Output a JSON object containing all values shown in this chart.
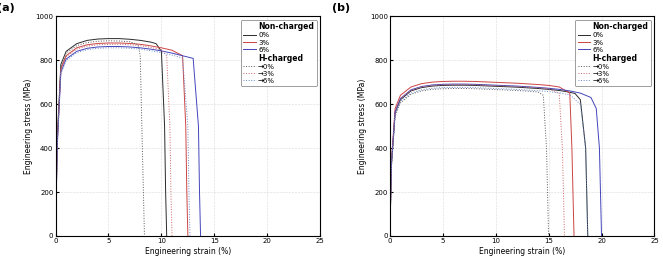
{
  "title_a": "(a)",
  "title_b": "(b)",
  "xlabel": "Engineering strain (%)",
  "ylabel": "Engineering stress (MPa)",
  "xlim": [
    0,
    25
  ],
  "ylim": [
    0,
    1000
  ],
  "yticks": [
    0,
    200,
    400,
    600,
    800,
    1000
  ],
  "xticks": [
    0,
    5,
    10,
    15,
    20,
    25
  ],
  "legend_noncharged": "Non-charged",
  "legend_hcharged": "H-charged",
  "legend_labels_nc": [
    "0%",
    "3%",
    "6%"
  ],
  "legend_labels_hc": [
    "→0%",
    "→3%",
    "→6%"
  ],
  "colors_nc": [
    "#2a2a2a",
    "#cc4444",
    "#4444bb"
  ],
  "colors_hc": [
    "#555555",
    "#cc6666",
    "#6688cc"
  ],
  "figsize": [
    6.63,
    2.6
  ],
  "dpi": 100,
  "subplot_background": "#ffffff",
  "grid_color": "#bbbbbb",
  "fontsize_label": 5.5,
  "fontsize_tick": 5.0,
  "fontsize_legend_title": 5.5,
  "fontsize_legend": 5.0,
  "fontsize_panel": 8,
  "linewidth_main": 0.7,
  "a_nc_0_strain": [
    0,
    0.15,
    0.5,
    1.0,
    2.0,
    3.0,
    4.0,
    5.0,
    6.0,
    7.0,
    8.0,
    9.0,
    9.5,
    10.0,
    10.3,
    10.4,
    10.5
  ],
  "a_nc_0_stress": [
    0,
    430,
    780,
    840,
    875,
    890,
    896,
    898,
    898,
    895,
    890,
    882,
    875,
    840,
    500,
    200,
    0
  ],
  "a_nc_3_strain": [
    0,
    0.15,
    0.5,
    1.0,
    2.0,
    3.0,
    4.0,
    5.0,
    6.0,
    7.0,
    8.0,
    9.0,
    10.0,
    11.0,
    12.0,
    12.3,
    12.4,
    12.5
  ],
  "a_nc_3_stress": [
    0,
    415,
    760,
    820,
    856,
    870,
    876,
    878,
    878,
    876,
    872,
    865,
    856,
    845,
    820,
    500,
    200,
    0
  ],
  "a_nc_6_strain": [
    0,
    0.15,
    0.5,
    1.0,
    2.0,
    3.0,
    4.0,
    5.0,
    6.0,
    7.0,
    8.0,
    9.0,
    10.0,
    11.0,
    12.0,
    13.0,
    13.5,
    13.6,
    13.7
  ],
  "a_nc_6_stress": [
    0,
    400,
    745,
    805,
    840,
    854,
    860,
    862,
    862,
    860,
    856,
    850,
    842,
    832,
    820,
    808,
    500,
    200,
    0
  ],
  "a_hc_0_strain": [
    0,
    0.15,
    0.5,
    1.0,
    2.0,
    3.0,
    4.0,
    5.0,
    6.0,
    7.0,
    7.8,
    8.0,
    8.2,
    8.3,
    8.4
  ],
  "a_hc_0_stress": [
    0,
    420,
    770,
    832,
    866,
    880,
    886,
    888,
    887,
    884,
    870,
    820,
    400,
    200,
    0
  ],
  "a_hc_3_strain": [
    0,
    0.15,
    0.5,
    1.0,
    2.0,
    3.0,
    4.0,
    5.0,
    6.0,
    7.0,
    8.0,
    9.0,
    10.0,
    10.5,
    10.8,
    10.9,
    11.0
  ],
  "a_hc_3_stress": [
    0,
    410,
    755,
    815,
    850,
    864,
    870,
    872,
    872,
    870,
    866,
    858,
    848,
    820,
    500,
    200,
    0
  ],
  "a_hc_6_strain": [
    0,
    0.15,
    0.5,
    1.0,
    2.0,
    3.0,
    4.0,
    5.0,
    6.0,
    7.0,
    8.0,
    9.0,
    10.0,
    11.0,
    12.0,
    12.5,
    12.6,
    12.7
  ],
  "a_hc_6_stress": [
    0,
    395,
    738,
    798,
    834,
    848,
    854,
    856,
    856,
    854,
    850,
    843,
    834,
    823,
    810,
    500,
    200,
    0
  ],
  "b_nc_0_strain": [
    0,
    0.15,
    0.5,
    1.0,
    2.0,
    3.0,
    4.0,
    5.0,
    6.0,
    7.0,
    8.0,
    9.0,
    10.0,
    11.0,
    12.0,
    13.0,
    14.0,
    15.0,
    16.0,
    17.0,
    17.5,
    18.0,
    18.5,
    18.6,
    18.7
  ],
  "b_nc_0_stress": [
    0,
    320,
    560,
    620,
    660,
    675,
    682,
    685,
    686,
    686,
    685,
    683,
    681,
    679,
    677,
    674,
    671,
    667,
    662,
    654,
    648,
    620,
    400,
    200,
    0
  ],
  "b_nc_3_strain": [
    0,
    0.15,
    0.5,
    1.0,
    2.0,
    3.0,
    4.0,
    5.0,
    6.0,
    7.0,
    8.0,
    9.0,
    10.0,
    11.0,
    12.0,
    13.0,
    14.0,
    15.0,
    16.0,
    17.0,
    17.2,
    17.3,
    17.4
  ],
  "b_nc_3_stress": [
    0,
    340,
    580,
    640,
    678,
    693,
    700,
    703,
    704,
    704,
    703,
    701,
    699,
    697,
    695,
    692,
    689,
    685,
    678,
    650,
    400,
    200,
    0
  ],
  "b_nc_6_strain": [
    0,
    0.15,
    0.5,
    1.0,
    2.0,
    3.0,
    4.0,
    5.0,
    6.0,
    7.0,
    8.0,
    9.0,
    10.0,
    11.0,
    12.0,
    13.0,
    14.0,
    15.0,
    16.0,
    17.0,
    18.0,
    19.0,
    19.5,
    19.8,
    19.9,
    20.0
  ],
  "b_nc_6_stress": [
    0,
    330,
    565,
    625,
    665,
    680,
    687,
    690,
    691,
    691,
    690,
    688,
    686,
    684,
    682,
    679,
    676,
    672,
    667,
    660,
    650,
    630,
    580,
    400,
    200,
    0
  ],
  "b_hc_0_strain": [
    0,
    0.15,
    0.5,
    1.0,
    2.0,
    3.0,
    4.0,
    5.0,
    6.0,
    7.0,
    8.0,
    9.0,
    10.0,
    11.0,
    12.0,
    13.0,
    14.0,
    14.5,
    14.8,
    14.9,
    15.0
  ],
  "b_hc_0_stress": [
    0,
    310,
    545,
    605,
    645,
    660,
    667,
    670,
    671,
    671,
    670,
    668,
    666,
    664,
    662,
    659,
    655,
    640,
    400,
    200,
    0
  ],
  "b_hc_3_strain": [
    0,
    0.15,
    0.5,
    1.0,
    2.0,
    3.0,
    4.0,
    5.0,
    6.0,
    7.0,
    8.0,
    9.0,
    10.0,
    11.0,
    12.0,
    13.0,
    14.0,
    15.0,
    16.0,
    16.3,
    16.4,
    16.5
  ],
  "b_hc_3_stress": [
    0,
    330,
    565,
    625,
    663,
    678,
    685,
    688,
    689,
    689,
    688,
    686,
    684,
    682,
    680,
    677,
    674,
    670,
    650,
    400,
    200,
    0
  ],
  "b_hc_6_strain": [
    0,
    0.15,
    0.5,
    1.0,
    2.0,
    3.0,
    4.0,
    5.0,
    6.0,
    7.0,
    8.0,
    9.0,
    10.0,
    11.0,
    12.0,
    13.0,
    14.0,
    15.0,
    16.0,
    17.0,
    18.0,
    18.5,
    18.6,
    18.7
  ],
  "b_hc_6_stress": [
    0,
    320,
    552,
    612,
    650,
    665,
    672,
    675,
    676,
    676,
    675,
    673,
    671,
    669,
    667,
    664,
    661,
    657,
    651,
    642,
    600,
    400,
    200,
    0
  ]
}
